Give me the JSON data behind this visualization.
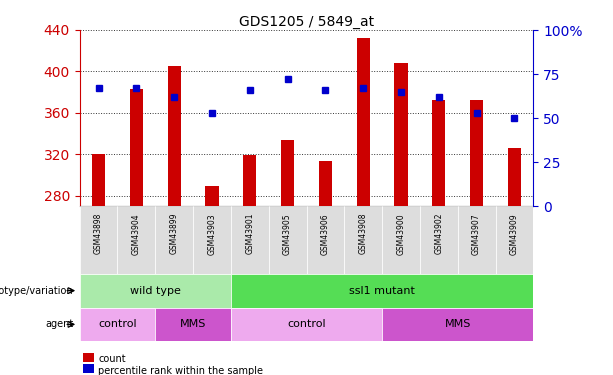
{
  "title": "GDS1205 / 5849_at",
  "samples": [
    "GSM43898",
    "GSM43904",
    "GSM43899",
    "GSM43903",
    "GSM43901",
    "GSM43905",
    "GSM43906",
    "GSM43908",
    "GSM43900",
    "GSM43902",
    "GSM43907",
    "GSM43909"
  ],
  "counts": [
    320,
    383,
    405,
    290,
    319,
    334,
    314,
    432,
    408,
    372,
    372,
    326
  ],
  "percentiles": [
    67,
    67,
    62,
    53,
    66,
    72,
    66,
    67,
    65,
    62,
    53,
    50
  ],
  "ylim_left": [
    270,
    440
  ],
  "ylim_right": [
    0,
    100
  ],
  "yticks_left": [
    280,
    320,
    360,
    400,
    440
  ],
  "yticks_right": [
    0,
    25,
    50,
    75,
    100
  ],
  "bar_color": "#cc0000",
  "marker_color": "#0000cc",
  "bar_width": 0.35,
  "genotype_groups": [
    {
      "label": "wild type",
      "start": 0,
      "end": 3,
      "color": "#aaeaaa"
    },
    {
      "label": "ssl1 mutant",
      "start": 4,
      "end": 11,
      "color": "#55dd55"
    }
  ],
  "agent_groups": [
    {
      "label": "control",
      "start": 0,
      "end": 1,
      "color": "#eeaaee"
    },
    {
      "label": "MMS",
      "start": 2,
      "end": 3,
      "color": "#cc55cc"
    },
    {
      "label": "control",
      "start": 4,
      "end": 7,
      "color": "#eeaaee"
    },
    {
      "label": "MMS",
      "start": 8,
      "end": 11,
      "color": "#cc55cc"
    }
  ],
  "legend_items": [
    {
      "label": "count",
      "color": "#cc0000"
    },
    {
      "label": "percentile rank within the sample",
      "color": "#0000cc"
    }
  ],
  "tick_label_color_left": "#cc0000",
  "tick_label_color_right": "#0000cc",
  "grid_color": "#000000",
  "spine_color_left": "#cc0000",
  "spine_color_right": "#0000cc"
}
